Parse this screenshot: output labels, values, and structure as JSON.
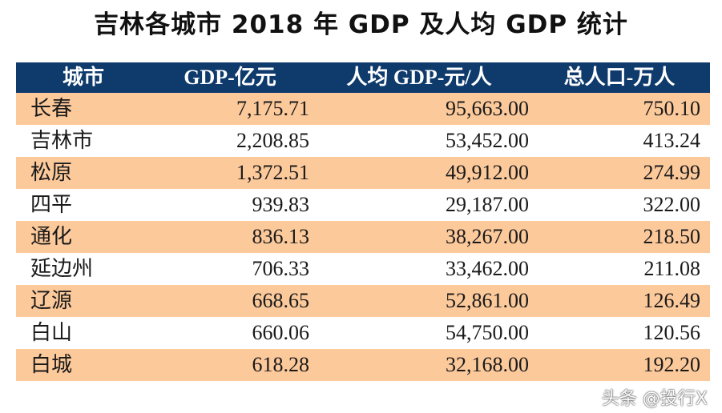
{
  "title": "吉林各城市 2018 年 GDP 及人均 GDP 统计",
  "table": {
    "headers": [
      "城市",
      "GDP-亿元",
      "人均 GDP-元/人",
      "总人口-万人"
    ],
    "rows": [
      [
        "长春",
        "7,175.71",
        "95,663.00",
        "750.10"
      ],
      [
        "吉林市",
        "2,208.85",
        "53,452.00",
        "413.24"
      ],
      [
        "松原",
        "1,372.51",
        "49,912.00",
        "274.99"
      ],
      [
        "四平",
        "939.83",
        "29,187.00",
        "322.00"
      ],
      [
        "通化",
        "836.13",
        "38,267.00",
        "218.50"
      ],
      [
        "延边州",
        "706.33",
        "33,462.00",
        "211.08"
      ],
      [
        "辽源",
        "668.65",
        "52,861.00",
        "126.49"
      ],
      [
        "白山",
        "660.06",
        "54,750.00",
        "120.56"
      ],
      [
        "白城",
        "618.28",
        "32,168.00",
        "192.20"
      ]
    ]
  },
  "watermark": "头条 @投行X",
  "colors": {
    "header_bg": "#0e3a6c",
    "row_highlight": "#fcc99b"
  }
}
